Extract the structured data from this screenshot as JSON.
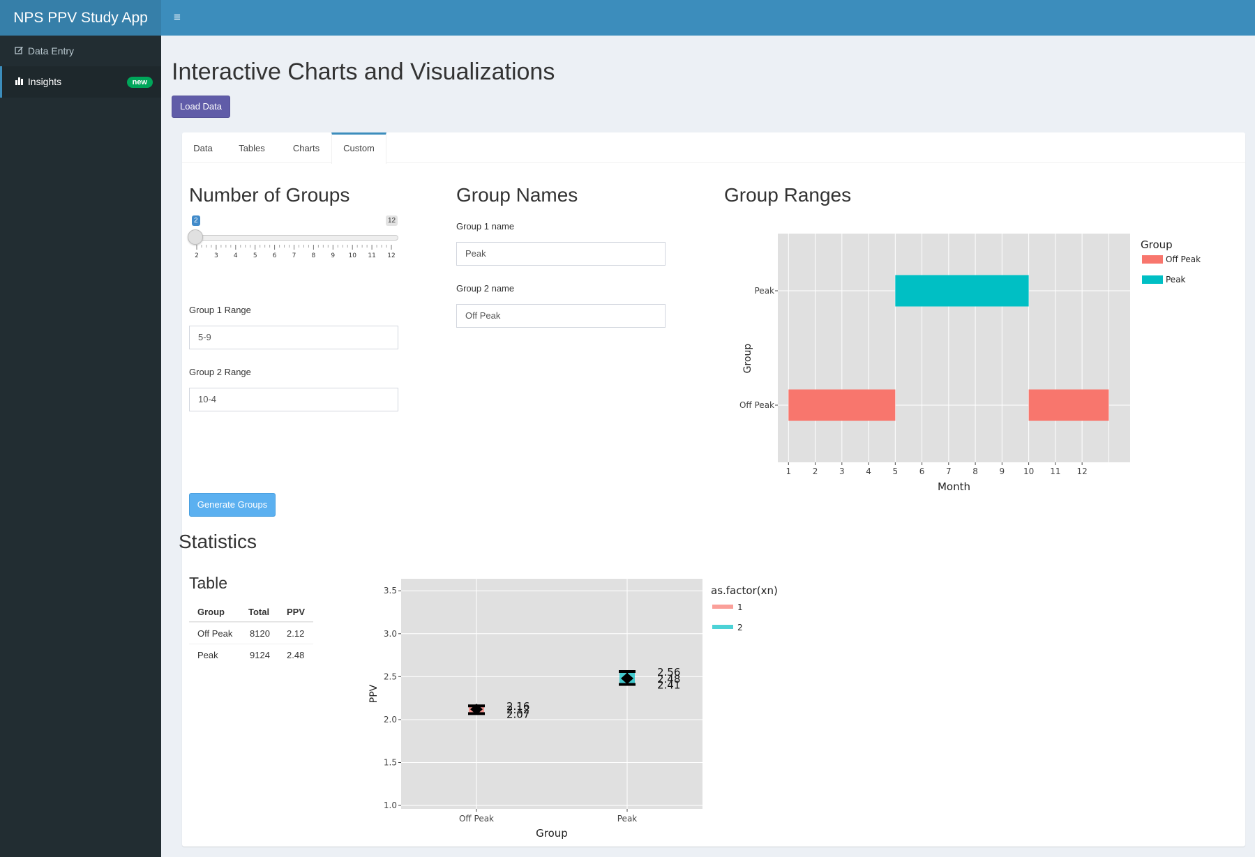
{
  "header": {
    "brand": "NPS PPV Study App",
    "toggle_icon": "≡"
  },
  "sidebar": {
    "items": [
      {
        "label": "Data Entry",
        "icon": "edit-icon"
      },
      {
        "label": "Insights",
        "icon": "bar-chart-icon",
        "badge": "new"
      }
    ]
  },
  "page": {
    "title": "Interactive Charts and Visualizations",
    "load_button": "Load Data"
  },
  "tabs": [
    "Data",
    "Tables",
    "Charts",
    "Custom"
  ],
  "custom": {
    "groups": {
      "title": "Number of Groups",
      "slider": {
        "value": "2",
        "min": 2,
        "max": "12",
        "ticks": [
          "2",
          "3",
          "4",
          "5",
          "6",
          "7",
          "8",
          "9",
          "10",
          "11",
          "12"
        ]
      },
      "range1_label": "Group 1 Range",
      "range1_value": "5-9",
      "range2_label": "Group 2 Range",
      "range2_value": "10-4",
      "generate_button": "Generate Groups"
    },
    "names": {
      "title": "Group Names",
      "name1_label": "Group 1 name",
      "name1_value": "Peak",
      "name2_label": "Group 2 name",
      "name2_value": "Off Peak"
    },
    "ranges_title": "Group Ranges"
  },
  "statistics": {
    "title": "Statistics",
    "table_title": "Table",
    "columns": [
      "Group",
      "Total",
      "PPV"
    ],
    "rows": [
      [
        "Off Peak",
        "8120",
        "2.12"
      ],
      [
        "Peak",
        "9124",
        "2.48"
      ]
    ]
  },
  "colors": {
    "peak": "#00bfc4",
    "offpeak": "#f8766d",
    "accent": "#3c8dbc"
  },
  "chart_data": [
    {
      "type": "bar",
      "title": "",
      "xlabel": "Month",
      "ylabel": "Group",
      "x_ticks": [
        "1",
        "2",
        "3",
        "4",
        "5",
        "6",
        "7",
        "8",
        "9",
        "10",
        "11",
        "12"
      ],
      "xlim": [
        0.6,
        13.8
      ],
      "categories": [
        "Off Peak",
        "Peak"
      ],
      "legend_title": "Group",
      "legend": [
        "Off Peak",
        "Peak"
      ],
      "legend_position": "right",
      "segments": [
        {
          "group": "Peak",
          "from": 5,
          "to": 10
        },
        {
          "group": "Off Peak",
          "from": 1,
          "to": 5
        },
        {
          "group": "Off Peak",
          "from": 10,
          "to": 13
        }
      ],
      "grid": true
    },
    {
      "type": "scatter",
      "title": "",
      "xlabel": "Group",
      "ylabel": "PPV",
      "categories": [
        "Off Peak",
        "Peak"
      ],
      "ylim": [
        0.96,
        3.64
      ],
      "y_ticks": [
        "1.0",
        "1.5",
        "2.0",
        "2.5",
        "3.0",
        "3.5"
      ],
      "legend_title": "as.factor(xn)",
      "legend": [
        "1",
        "2"
      ],
      "legend_position": "right",
      "points": [
        {
          "group": "Off Peak",
          "value": 2.12,
          "low": 2.07,
          "high": 2.16,
          "labels": [
            "2.16",
            "2.12",
            "2.07"
          ]
        },
        {
          "group": "Peak",
          "value": 2.48,
          "low": 2.41,
          "high": 2.56,
          "labels": [
            "2.56",
            "2.48",
            "2.41"
          ]
        }
      ],
      "grid": true
    }
  ]
}
